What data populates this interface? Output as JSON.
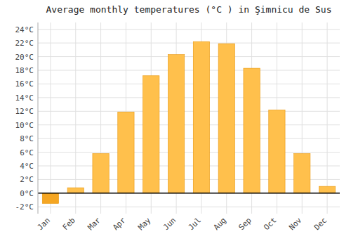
{
  "chart_data": {
    "type": "bar",
    "title": "Average monthly temperatures (°C ) in Şimnicu de Sus",
    "categories": [
      "Jan",
      "Feb",
      "Mar",
      "Apr",
      "May",
      "Jun",
      "Jul",
      "Aug",
      "Sep",
      "Oct",
      "Nov",
      "Dec"
    ],
    "values": [
      -1.5,
      0.8,
      5.8,
      11.9,
      17.2,
      20.3,
      22.2,
      21.9,
      18.3,
      12.2,
      5.8,
      1.0
    ],
    "colors": [
      "#F5A623",
      "#FFC04C",
      "#FFC04C",
      "#FFC04C",
      "#FFC04C",
      "#FFC04C",
      "#FFC04C",
      "#FFC04C",
      "#FFC04C",
      "#FFC04C",
      "#FFC04C",
      "#FFC04C"
    ],
    "ylim": [
      -3,
      25
    ],
    "yticks": [
      {
        "value": -2,
        "label": "-2°C"
      },
      {
        "value": 0,
        "label": "0°C"
      },
      {
        "value": 2,
        "label": "2°C"
      },
      {
        "value": 4,
        "label": "4°C"
      },
      {
        "value": 6,
        "label": "6°C"
      },
      {
        "value": 8,
        "label": "8°C"
      },
      {
        "value": 10,
        "label": "10°C"
      },
      {
        "value": 12,
        "label": "12°C"
      },
      {
        "value": 14,
        "label": "14°C"
      },
      {
        "value": 16,
        "label": "16°C"
      },
      {
        "value": 18,
        "label": "18°C"
      },
      {
        "value": 20,
        "label": "20°C"
      },
      {
        "value": 22,
        "label": "22°C"
      },
      {
        "value": 24,
        "label": "24°C"
      }
    ],
    "grid": true
  }
}
